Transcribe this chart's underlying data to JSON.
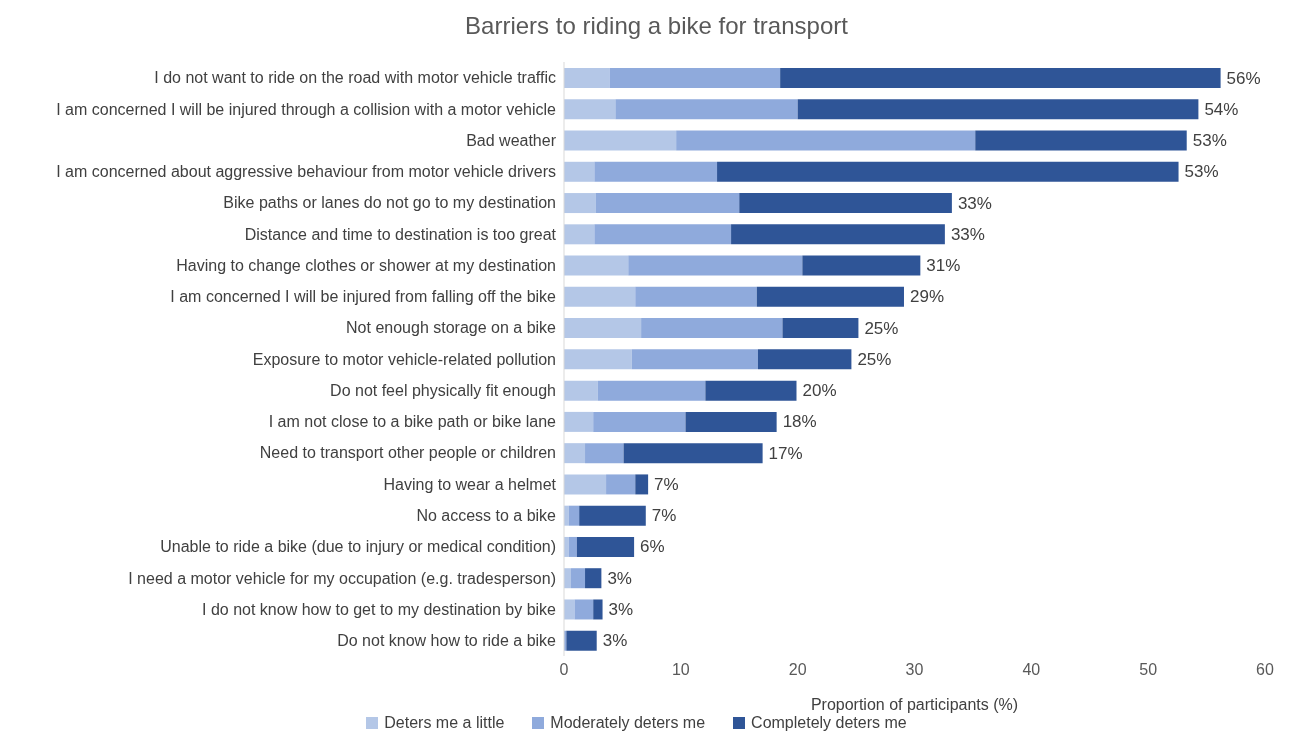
{
  "chart_data": {
    "type": "bar",
    "orientation": "horizontal",
    "stacked": true,
    "title": "Barriers to riding a bike for transport",
    "xlabel": "Proportion of participants (%)",
    "categories": [
      "I do not want to ride on the road with motor vehicle traffic",
      "I am concerned I will be injured through a collision with a motor vehicle",
      "Bad weather",
      "I am concerned about aggressive behaviour from motor vehicle drivers",
      "Bike paths or lanes do not go to my destination",
      "Distance and time to destination is too great",
      "Having to change clothes or shower at my destination",
      "I am concerned I will be injured from falling off the bike",
      "Not enough storage on a bike",
      "Exposure to motor vehicle-related pollution",
      "Do not feel physically fit enough",
      "I am not close to a bike path or bike lane",
      "Need to transport other people or children",
      "Having to wear a helmet",
      "No access to a bike",
      "Unable to ride a bike (due to injury or medical condition)",
      "I need a motor vehicle for my occupation (e.g. tradesperson)",
      "I do not know how to get to my destination by bike",
      "Do not know how to ride a bike"
    ],
    "series": [
      {
        "name": "Deters me a little",
        "color": "#b4c7e7",
        "values": [
          3.9,
          4.4,
          9.6,
          2.6,
          2.7,
          2.6,
          5.5,
          6.1,
          6.6,
          5.8,
          2.9,
          2.5,
          1.8,
          3.6,
          0.4,
          0.4,
          0.6,
          0.9,
          null
        ]
      },
      {
        "name": "Moderately deters me",
        "color": "#8faadc",
        "values": [
          14.6,
          15.6,
          25.6,
          10.5,
          12.3,
          11.7,
          14.9,
          10.4,
          12.1,
          10.8,
          9.2,
          7.9,
          3.3,
          2.5,
          0.9,
          0.7,
          1.2,
          1.6,
          0.2
        ]
      },
      {
        "name": "Completely deters me",
        "color": "#2f5597",
        "values": [
          37.7,
          34.3,
          18.1,
          39.5,
          18.2,
          18.3,
          10.1,
          12.6,
          6.5,
          8.0,
          7.8,
          7.8,
          11.9,
          1.1,
          5.7,
          4.9,
          1.4,
          0.8,
          2.6
        ]
      }
    ],
    "totals": [
      "56%",
      "54%",
      "53%",
      "53%",
      "33%",
      "33%",
      "31%",
      "29%",
      "25%",
      "25%",
      "20%",
      "18%",
      "17%",
      "7%",
      "7%",
      "6%",
      "3%",
      "3%",
      "3%"
    ],
    "xlim": [
      0,
      60
    ],
    "xticks": [
      0,
      10,
      20,
      30,
      40,
      50,
      60
    ],
    "grid": false,
    "legend": "bottom"
  }
}
